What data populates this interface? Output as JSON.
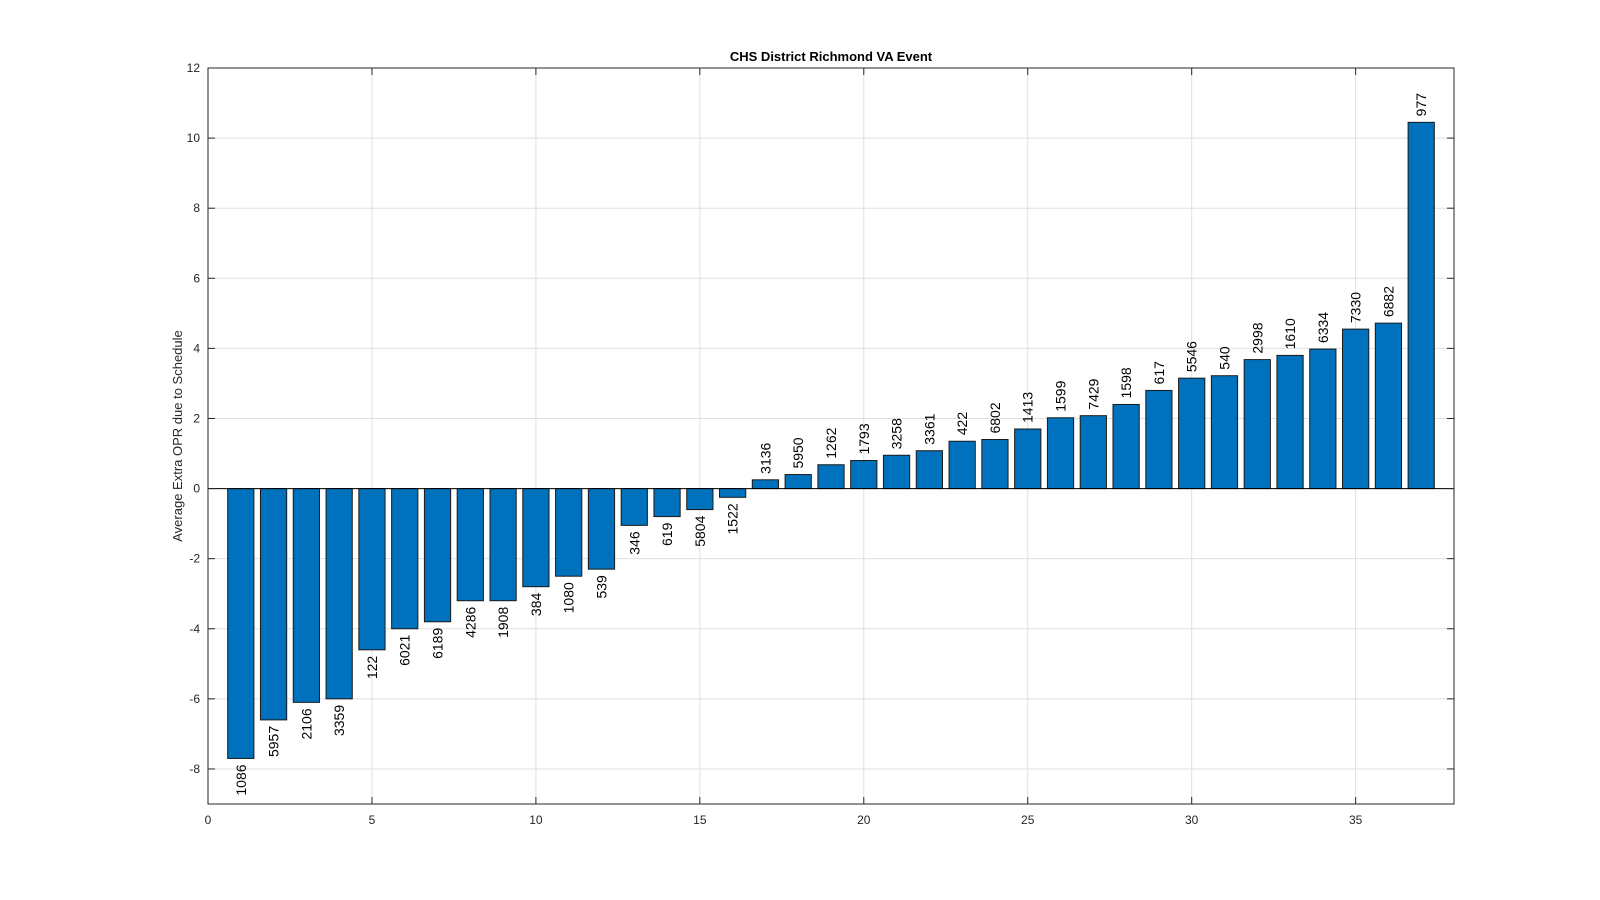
{
  "chart_data": {
    "type": "bar",
    "title": "CHS District Richmond VA Event",
    "xlabel": "",
    "ylabel": "Average Extra OPR due to Schedule",
    "xlim": [
      0,
      38
    ],
    "ylim": [
      -9,
      12
    ],
    "xticks": [
      0,
      5,
      10,
      15,
      20,
      25,
      30,
      35
    ],
    "yticks": [
      -8,
      -6,
      -4,
      -2,
      0,
      2,
      4,
      6,
      8,
      10,
      12
    ],
    "grid": true,
    "bar_color": "#0072BD",
    "x": [
      1,
      2,
      3,
      4,
      5,
      6,
      7,
      8,
      9,
      10,
      11,
      12,
      13,
      14,
      15,
      16,
      17,
      18,
      19,
      20,
      21,
      22,
      23,
      24,
      25,
      26,
      27,
      28,
      29,
      30,
      31,
      32,
      33,
      34,
      35,
      36,
      37
    ],
    "values": [
      -7.7,
      -6.6,
      -6.1,
      -6.0,
      -4.6,
      -4.0,
      -3.8,
      -3.2,
      -3.2,
      -2.8,
      -2.5,
      -2.3,
      -1.05,
      -0.8,
      -0.6,
      -0.25,
      0.25,
      0.4,
      0.68,
      0.8,
      0.95,
      1.08,
      1.35,
      1.4,
      1.7,
      2.02,
      2.08,
      2.4,
      2.8,
      3.15,
      3.22,
      3.68,
      3.8,
      3.98,
      4.55,
      4.72,
      10.45
    ],
    "bar_labels": [
      "1086",
      "5957",
      "2106",
      "3359",
      "122",
      "6021",
      "6189",
      "4286",
      "1908",
      "384",
      "1080",
      "539",
      "346",
      "619",
      "5804",
      "1522",
      "3136",
      "5950",
      "1262",
      "1793",
      "3258",
      "3361",
      "422",
      "6802",
      "1413",
      "1599",
      "7429",
      "1598",
      "617",
      "5546",
      "540",
      "2998",
      "1610",
      "6334",
      "7330",
      "6882",
      "977"
    ]
  }
}
